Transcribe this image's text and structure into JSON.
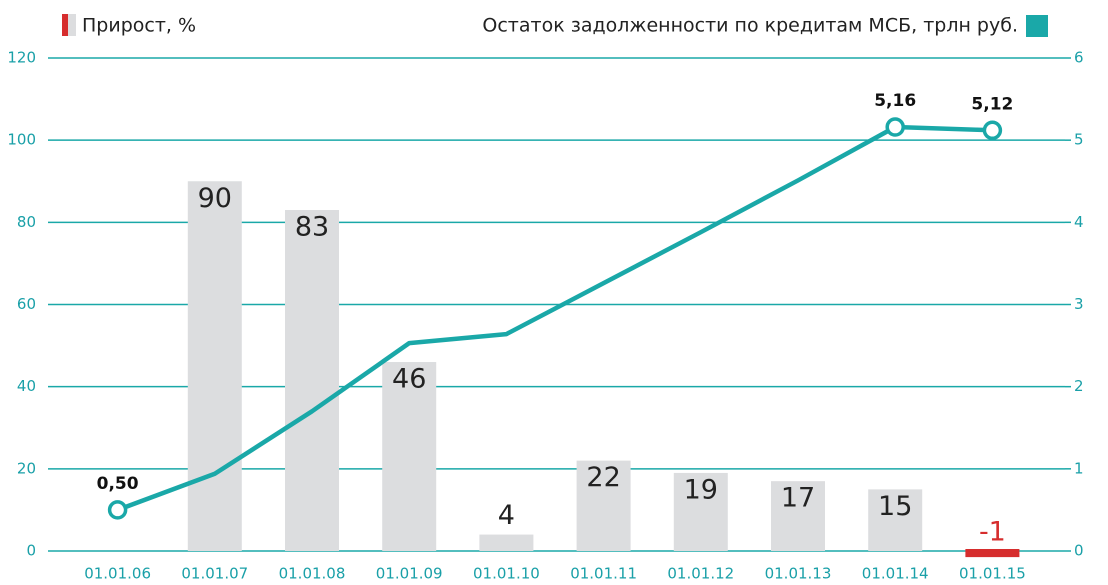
{
  "chart_data": {
    "type": "bar_line",
    "categories": [
      "01.01.06",
      "01.01.07",
      "01.01.08",
      "01.01.09",
      "01.01.10",
      "01.01.11",
      "01.01.12",
      "01.01.13",
      "01.01.14",
      "01.01.15"
    ],
    "series": [
      {
        "name": "Прирост, %",
        "type": "bar",
        "color": "#dcdddf",
        "negative_color": "#d62d2d",
        "legend_colors": [
          "#d62d2d",
          "#dcdddf"
        ],
        "values": [
          null,
          90,
          83,
          46,
          4,
          22,
          19,
          17,
          15,
          -1
        ]
      },
      {
        "name": "Остаток задолженности по кредитам МСБ, трлн руб.",
        "type": "line",
        "axis": "y2",
        "color": "#1aa8a8",
        "values": [
          0.5,
          0.94,
          1.7,
          2.53,
          2.64,
          3.26,
          3.88,
          4.51,
          5.16,
          5.12
        ],
        "value_labels": [
          "0,50",
          null,
          null,
          null,
          null,
          null,
          null,
          null,
          "5,16",
          "5,12"
        ]
      }
    ],
    "ylim": [
      0,
      120
    ],
    "yticks": [
      0,
      20,
      40,
      60,
      80,
      100,
      120
    ],
    "y2lim": [
      0,
      6
    ],
    "y2ticks": [
      0,
      1,
      2,
      3,
      4,
      5,
      6
    ],
    "grid": true
  }
}
